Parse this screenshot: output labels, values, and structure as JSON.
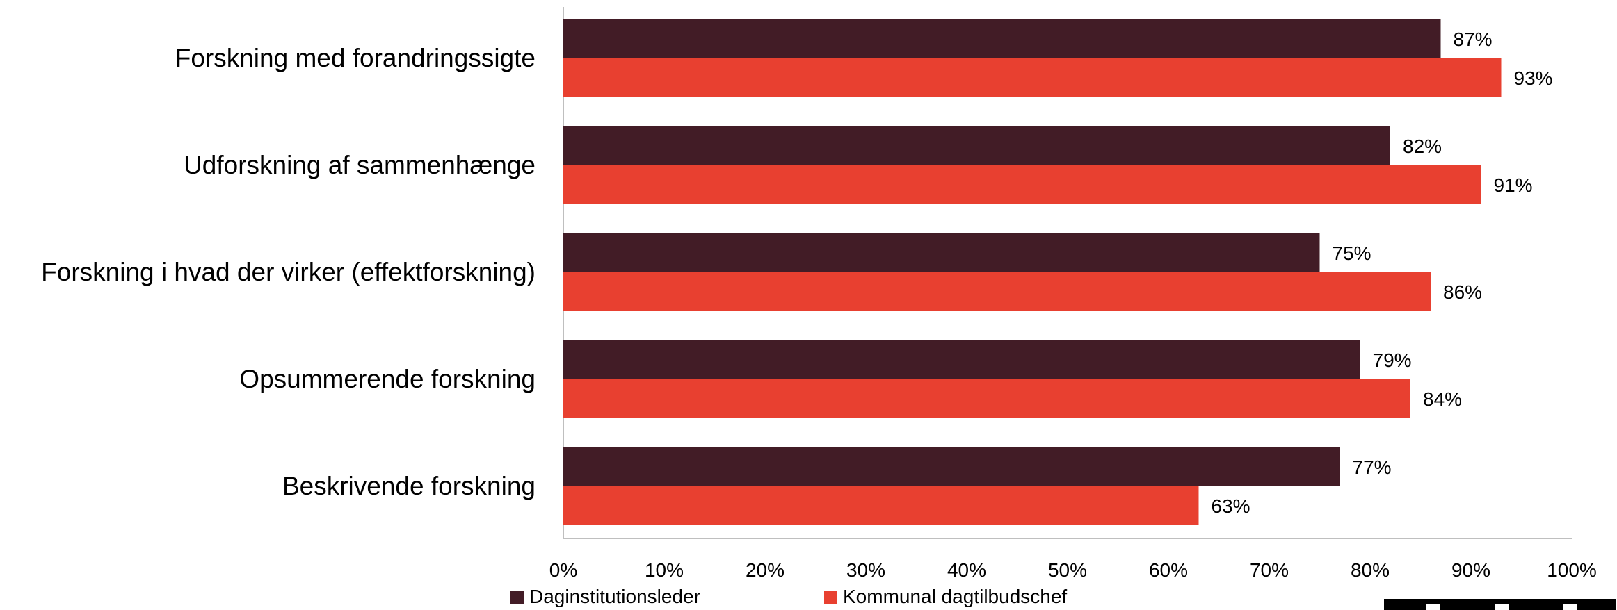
{
  "chart_data": {
    "type": "bar",
    "orientation": "horizontal",
    "categories": [
      "Forskning med forandringssigte",
      "Udforskning af sammenhænge",
      "Forskning i hvad der virker (effektforskning)",
      "Opsummerende forskning",
      "Beskrivende forskning"
    ],
    "series": [
      {
        "name": "Daginstitutionsleder",
        "color": "#421c26",
        "values": [
          87,
          82,
          75,
          79,
          77
        ]
      },
      {
        "name": "Kommunal dagtilbudschef",
        "color": "#e84030",
        "values": [
          93,
          91,
          86,
          84,
          63
        ]
      }
    ],
    "value_suffix": "%",
    "xlim": [
      0,
      100
    ],
    "xticks": [
      "0%",
      "10%",
      "20%",
      "30%",
      "40%",
      "50%",
      "60%",
      "70%",
      "80%",
      "90%",
      "100%"
    ],
    "grid": false,
    "legend_position": "bottom-left"
  }
}
